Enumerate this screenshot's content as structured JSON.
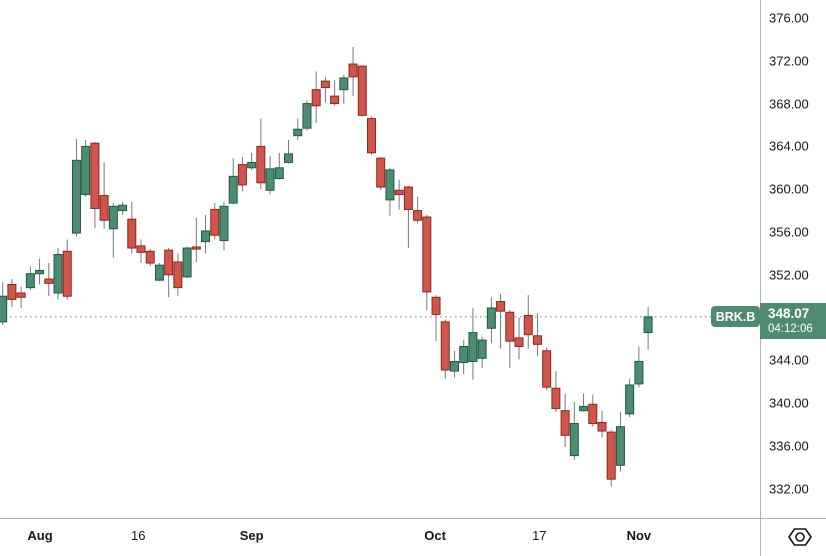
{
  "symbol_label": {
    "symbol": "BRK.B",
    "price": "348.07",
    "countdown": "04:12:06"
  },
  "colors": {
    "up_fill": "#4E8C72",
    "up_border": "#1E5B43",
    "down_fill": "#D0554A",
    "down_border": "#8B281E",
    "wick": "#74787E",
    "accent": "#4E8C72",
    "axis_line": "#B0B3BC",
    "tick_text": "#131722",
    "chip_text": "#FFFFFF",
    "icon": "#131722"
  },
  "chart_data": {
    "type": "candlestick",
    "symbol": "BRK.B",
    "last_price": 348.07,
    "countdown": "04:12:06",
    "ylim": [
      330,
      377.5
    ],
    "grid": "off",
    "legend_position": "none",
    "y_ticks": [
      "376.00",
      "372.00",
      "368.00",
      "364.00",
      "360.00",
      "356.00",
      "352.00",
      "344.00",
      "340.00",
      "336.00",
      "332.00"
    ],
    "x_ticks": [
      {
        "label": "Aug",
        "i": 4.05,
        "major": true
      },
      {
        "label": "16",
        "i": 14.7,
        "major": false
      },
      {
        "label": "Sep",
        "i": 27.0,
        "major": true
      },
      {
        "label": "Oct",
        "i": 46.9,
        "major": true
      },
      {
        "label": "17",
        "i": 58.2,
        "major": false
      },
      {
        "label": "Nov",
        "i": 69.0,
        "major": true
      }
    ],
    "candles_format": [
      "open",
      "high",
      "low",
      "close"
    ],
    "candles": [
      [
        347.6,
        351.3,
        347.3,
        350.0
      ],
      [
        351.1,
        351.6,
        349.0,
        349.7
      ],
      [
        350.3,
        350.9,
        348.9,
        349.9
      ],
      [
        350.8,
        352.8,
        350.6,
        352.1
      ],
      [
        352.1,
        353.5,
        351.1,
        352.4
      ],
      [
        351.6,
        353.1,
        350.0,
        351.2
      ],
      [
        350.3,
        354.5,
        349.7,
        353.9
      ],
      [
        354.2,
        355.3,
        349.7,
        350.0
      ],
      [
        355.9,
        364.7,
        355.6,
        362.7
      ],
      [
        359.5,
        364.6,
        359.3,
        364.0
      ],
      [
        364.3,
        364.4,
        356.4,
        358.2
      ],
      [
        359.4,
        362.5,
        356.3,
        357.1
      ],
      [
        356.3,
        358.7,
        353.6,
        358.4
      ],
      [
        358.0,
        358.8,
        357.6,
        358.5
      ],
      [
        357.2,
        358.8,
        354.0,
        354.5
      ],
      [
        354.7,
        355.3,
        353.1,
        354.1
      ],
      [
        354.2,
        354.4,
        352.8,
        353.1
      ],
      [
        351.5,
        353.1,
        351.4,
        352.9
      ],
      [
        354.3,
        354.5,
        349.9,
        352.0
      ],
      [
        353.2,
        354.0,
        350.0,
        350.8
      ],
      [
        351.8,
        354.6,
        351.7,
        354.5
      ],
      [
        354.6,
        357.3,
        353.2,
        354.4
      ],
      [
        355.1,
        357.6,
        354.0,
        356.1
      ],
      [
        358.1,
        358.7,
        355.3,
        355.7
      ],
      [
        355.2,
        358.8,
        354.3,
        358.4
      ],
      [
        358.7,
        362.9,
        358.6,
        361.2
      ],
      [
        362.3,
        363.0,
        359.8,
        360.4
      ],
      [
        362.0,
        363.4,
        361.8,
        362.5
      ],
      [
        364.0,
        366.6,
        360.0,
        360.6
      ],
      [
        359.9,
        363.1,
        359.5,
        361.9
      ],
      [
        361.0,
        363.4,
        360.9,
        362.0
      ],
      [
        362.5,
        364.6,
        362.4,
        363.3
      ],
      [
        365.0,
        366.6,
        364.6,
        365.6
      ],
      [
        365.7,
        368.3,
        365.5,
        368.0
      ],
      [
        369.3,
        371.0,
        366.2,
        367.8
      ],
      [
        370.1,
        370.5,
        368.1,
        369.5
      ],
      [
        368.7,
        370.2,
        367.8,
        368.0
      ],
      [
        369.3,
        370.7,
        368.0,
        370.4
      ],
      [
        371.7,
        373.3,
        368.7,
        370.5
      ],
      [
        371.5,
        371.6,
        366.8,
        366.9
      ],
      [
        366.6,
        366.8,
        363.2,
        363.4
      ],
      [
        362.9,
        363.0,
        359.9,
        360.2
      ],
      [
        359.0,
        362.0,
        357.5,
        361.8
      ],
      [
        359.9,
        360.9,
        358.1,
        359.5
      ],
      [
        360.2,
        360.3,
        354.5,
        358.1
      ],
      [
        358.0,
        359.3,
        356.8,
        357.1
      ],
      [
        357.4,
        357.6,
        348.7,
        350.4
      ],
      [
        349.9,
        350.1,
        345.8,
        348.3
      ],
      [
        347.6,
        347.8,
        342.3,
        343.1
      ],
      [
        343.0,
        344.9,
        342.4,
        343.9
      ],
      [
        343.8,
        345.9,
        342.7,
        345.3
      ],
      [
        343.9,
        348.9,
        342.2,
        346.6
      ],
      [
        344.2,
        346.2,
        343.3,
        345.9
      ],
      [
        347.0,
        349.9,
        345.6,
        348.9
      ],
      [
        349.5,
        350.2,
        345.1,
        348.6
      ],
      [
        348.5,
        348.7,
        343.3,
        345.8
      ],
      [
        346.1,
        348.0,
        344.1,
        345.3
      ],
      [
        348.2,
        350.1,
        345.1,
        346.4
      ],
      [
        346.3,
        348.4,
        344.4,
        345.5
      ],
      [
        344.9,
        345.2,
        341.2,
        341.5
      ],
      [
        341.4,
        343.0,
        339.2,
        339.5
      ],
      [
        339.3,
        340.9,
        335.9,
        337.0
      ],
      [
        335.1,
        340.1,
        334.7,
        338.1
      ],
      [
        339.3,
        340.9,
        339.2,
        339.7
      ],
      [
        339.9,
        340.8,
        337.8,
        338.1
      ],
      [
        338.2,
        339.3,
        336.8,
        337.4
      ],
      [
        337.3,
        337.5,
        332.2,
        332.9
      ],
      [
        334.2,
        339.2,
        333.6,
        337.8
      ],
      [
        339.0,
        342.3,
        338.7,
        341.7
      ],
      [
        341.8,
        345.3,
        341.5,
        343.9
      ],
      [
        346.6,
        349.0,
        345.0,
        348.07
      ]
    ]
  }
}
